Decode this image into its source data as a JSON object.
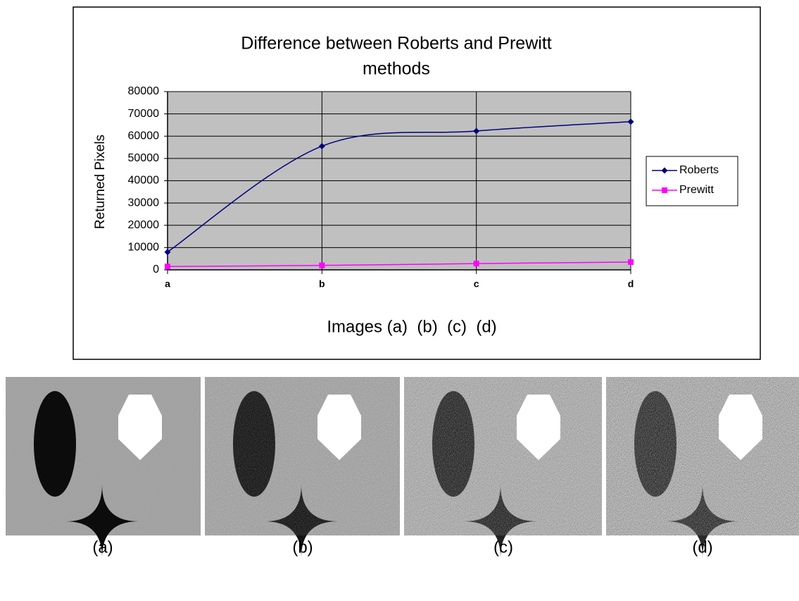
{
  "chart_data": {
    "type": "line",
    "title": [
      "Difference between Roberts and Prewitt",
      "methods"
    ],
    "ylabel": "Returned Pixels",
    "xlabel": "Images (a)  (b)  (c)  (d)",
    "categories": [
      "a",
      "b",
      "c",
      "d"
    ],
    "series": [
      {
        "name": "Roberts",
        "color": "#000080",
        "marker": "diamond",
        "values": [
          8000,
          55500,
          62300,
          66500
        ]
      },
      {
        "name": "Prewitt",
        "color": "#ff00ff",
        "marker": "square",
        "values": [
          1500,
          2000,
          2800,
          3500
        ]
      }
    ],
    "ylim": [
      0,
      80000
    ],
    "yticks": [
      0,
      10000,
      20000,
      30000,
      40000,
      50000,
      60000,
      70000,
      80000
    ],
    "grid": true,
    "x_grid": true,
    "smooth": true,
    "legend": "right",
    "plot_background": "#c0c0c0"
  },
  "panels": [
    "(a)",
    "(b)",
    "(c)",
    "(d)"
  ]
}
